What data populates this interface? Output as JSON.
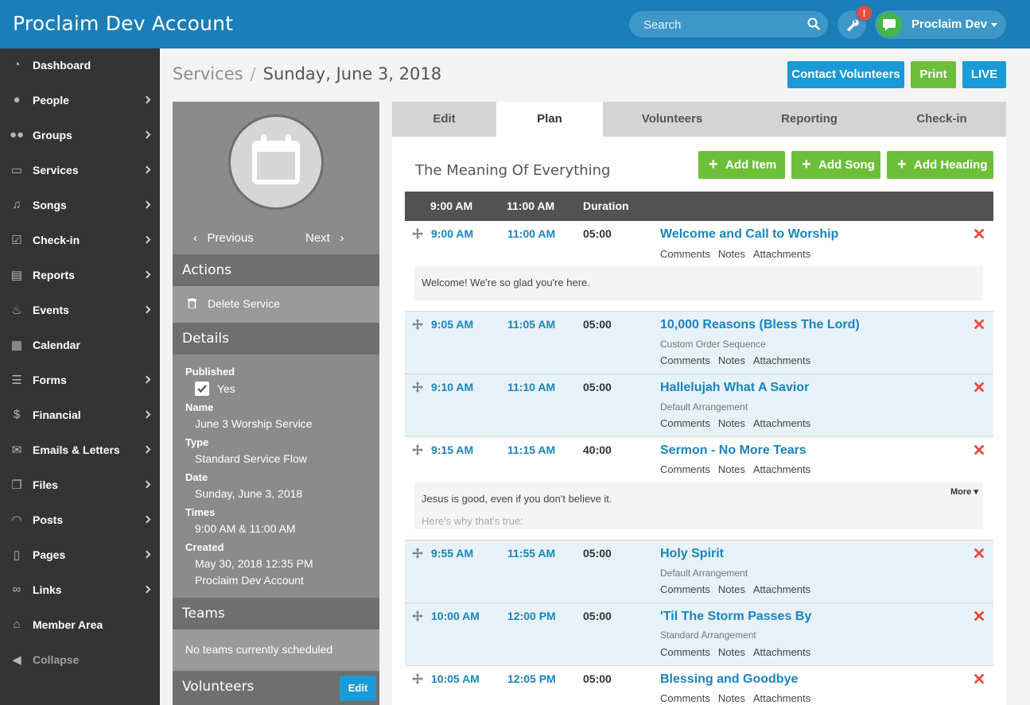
{
  "app": {
    "title": "Proclaim Dev Account"
  },
  "topbar": {
    "search_placeholder": "Search",
    "tools_icon": "wrench-icon",
    "alert_count": "!",
    "user_name": "Proclaim Dev"
  },
  "sidebar": {
    "items": [
      {
        "label": "Dashboard",
        "icon": "dashboard-icon",
        "chevron": false
      },
      {
        "label": "People",
        "icon": "person-icon",
        "chevron": true
      },
      {
        "label": "Groups",
        "icon": "group-icon",
        "chevron": true
      },
      {
        "label": "Services",
        "icon": "calendar-icon",
        "chevron": true
      },
      {
        "label": "Songs",
        "icon": "music-icon",
        "chevron": true
      },
      {
        "label": "Check-in",
        "icon": "checkbox-icon",
        "chevron": true
      },
      {
        "label": "Reports",
        "icon": "document-icon",
        "chevron": true
      },
      {
        "label": "Events",
        "icon": "cake-icon",
        "chevron": true
      },
      {
        "label": "Calendar",
        "icon": "calendar-grid-icon",
        "chevron": false
      },
      {
        "label": "Forms",
        "icon": "list-icon",
        "chevron": true
      },
      {
        "label": "Financial",
        "icon": "dollar-icon",
        "chevron": true
      },
      {
        "label": "Emails & Letters",
        "icon": "envelope-icon",
        "chevron": true
      },
      {
        "label": "Files",
        "icon": "files-icon",
        "chevron": true
      },
      {
        "label": "Posts",
        "icon": "rss-icon",
        "chevron": true
      },
      {
        "label": "Pages",
        "icon": "page-icon",
        "chevron": true
      },
      {
        "label": "Links",
        "icon": "link-icon",
        "chevron": true
      },
      {
        "label": "Member Area",
        "icon": "home-icon",
        "chevron": false
      },
      {
        "label": "Collapse",
        "icon": "collapse-icon",
        "chevron": false
      }
    ]
  },
  "header": {
    "breadcrumb_root": "Services",
    "breadcrumb_sep": "/",
    "breadcrumb_current": "Sunday, June 3, 2018",
    "contact_volunteers": "Contact Volunteers",
    "print": "Print",
    "live": "LIVE"
  },
  "info": {
    "previous": "Previous",
    "next": "Next",
    "actions_heading": "Actions",
    "delete_service": "Delete Service",
    "details_heading": "Details",
    "published_label": "Published",
    "published_value": "Yes",
    "name_label": "Name",
    "name_value": "June 3 Worship Service",
    "type_label": "Type",
    "type_value": "Standard Service Flow",
    "date_label": "Date",
    "date_value": "Sunday, June 3, 2018",
    "times_label": "Times",
    "times_value": "9:00 AM & 11:00 AM",
    "created_label": "Created",
    "created_value": "May 30, 2018 12:35 PM",
    "created_by": "Proclaim Dev Account",
    "teams_heading": "Teams",
    "teams_empty": "No teams currently scheduled",
    "volunteers_heading": "Volunteers",
    "volunteers_edit": "Edit"
  },
  "tabs": [
    "Edit",
    "Plan",
    "Volunteers",
    "Reporting",
    "Check-in"
  ],
  "plan": {
    "title": "The Meaning Of Everything",
    "add_item": "Add Item",
    "add_song": "Add Song",
    "add_heading": "Add Heading",
    "columns": [
      "9:00 AM",
      "11:00 AM",
      "Duration"
    ],
    "link_labels": [
      "Comments",
      "Notes",
      "Attachments"
    ],
    "more_label": "More",
    "items": [
      {
        "t1": "9:00 AM",
        "t2": "11:00 AM",
        "duration": "05:00",
        "title": "Welcome and Call to Worship",
        "arrangement": "",
        "note": "Welcome! We're so glad you're here.",
        "note2": ""
      },
      {
        "t1": "9:05 AM",
        "t2": "11:05 AM",
        "duration": "05:00",
        "title": "10,000 Reasons (Bless The Lord)",
        "arrangement": "Custom Order Sequence",
        "note": "",
        "note2": ""
      },
      {
        "t1": "9:10 AM",
        "t2": "11:10 AM",
        "duration": "05:00",
        "title": "Hallelujah What A Savior",
        "arrangement": "Default Arrangement",
        "note": "",
        "note2": ""
      },
      {
        "t1": "9:15 AM",
        "t2": "11:15 AM",
        "duration": "40:00",
        "title": "Sermon - No More Tears",
        "arrangement": "",
        "note": "Jesus is good, even if you don't believe it.",
        "note2": "Here's why that's true:"
      },
      {
        "t1": "9:55 AM",
        "t2": "11:55 AM",
        "duration": "05:00",
        "title": "Holy Spirit",
        "arrangement": "Default Arrangement",
        "note": "",
        "note2": ""
      },
      {
        "t1": "10:00 AM",
        "t2": "12:00 PM",
        "duration": "05:00",
        "title": "'Til The Storm Passes By",
        "arrangement": "Standard Arrangement",
        "note": "",
        "note2": ""
      },
      {
        "t1": "10:05 AM",
        "t2": "12:05 PM",
        "duration": "05:00",
        "title": "Blessing and Goodbye",
        "arrangement": "",
        "note": "",
        "note2": ""
      }
    ]
  },
  "colors": {
    "topbar": "#1a7fb8",
    "sidebar": "#343434",
    "accent_blue": "#1a9ad6",
    "accent_green": "#6dbf3a",
    "link_blue": "#1a84bf",
    "delete_red": "#e74c3c"
  }
}
